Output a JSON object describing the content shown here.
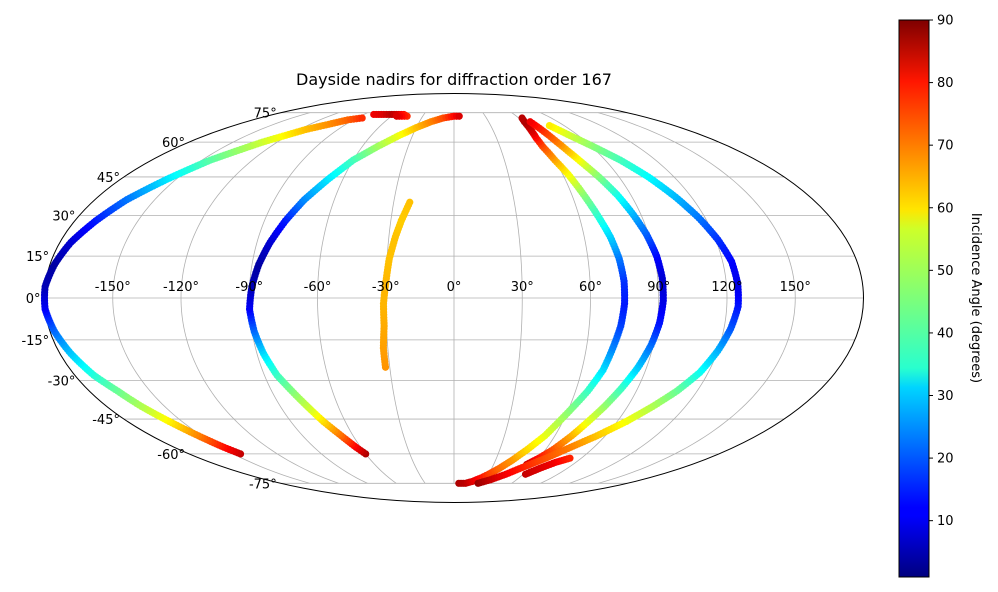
{
  "chart_data": {
    "type": "scatter",
    "projection": "mollweide",
    "title": "Dayside nadirs for diffraction order 167",
    "lon_ticks": [
      "-150°",
      "-120°",
      "-90°",
      "-60°",
      "-30°",
      "0°",
      "30°",
      "60°",
      "90°",
      "120°",
      "150°"
    ],
    "lon_tick_values": [
      -150,
      -120,
      -90,
      -60,
      -30,
      0,
      30,
      60,
      90,
      120,
      150
    ],
    "lat_ticks": [
      "75°",
      "60°",
      "45°",
      "30°",
      "15°",
      "0°",
      "-15°",
      "-30°",
      "-45°",
      "-60°",
      "-75°"
    ],
    "lat_tick_values": [
      75,
      60,
      45,
      30,
      15,
      0,
      -15,
      -30,
      -45,
      -60,
      -75
    ],
    "grid": true,
    "colorbar": {
      "label": "Incidence Angle (degrees)",
      "colormap": "jet",
      "range": [
        1,
        90
      ],
      "ticks": [
        "10",
        "20",
        "30",
        "40",
        "50",
        "60",
        "70",
        "80",
        "90"
      ],
      "tick_values": [
        10,
        20,
        30,
        40,
        50,
        60,
        70,
        80,
        90
      ]
    },
    "series": [
      {
        "points": [
          [
            -60,
            -60,
            86
          ],
          [
            -63,
            -57,
            80
          ],
          [
            -67,
            -52,
            70
          ],
          [
            -72,
            -46,
            60
          ],
          [
            -76,
            -40,
            52
          ],
          [
            -80,
            -34,
            46
          ],
          [
            -84,
            -28,
            40
          ],
          [
            -87,
            -20,
            32
          ],
          [
            -89,
            -12,
            22
          ],
          [
            -90,
            -4,
            12
          ],
          [
            -89,
            4,
            6
          ],
          [
            -87,
            12,
            4
          ],
          [
            -84,
            20,
            8
          ],
          [
            -80,
            28,
            14
          ],
          [
            -75,
            36,
            24
          ],
          [
            -68,
            44,
            32
          ],
          [
            -60,
            52,
            40
          ],
          [
            -50,
            58,
            48
          ],
          [
            -40,
            63,
            55
          ],
          [
            -30,
            67,
            62
          ],
          [
            -20,
            70,
            67
          ],
          [
            -10,
            72,
            72
          ],
          [
            0,
            73,
            78
          ],
          [
            5,
            73,
            82
          ]
        ]
      },
      {
        "points": [
          [
            -145,
            -60,
            84
          ],
          [
            -148,
            -57,
            78
          ],
          [
            -152,
            -52,
            68
          ],
          [
            -157,
            -46,
            58
          ],
          [
            -162,
            -40,
            50
          ],
          [
            -166,
            -34,
            44
          ],
          [
            -171,
            -28,
            38
          ],
          [
            -175,
            -20,
            30
          ],
          [
            -178,
            -12,
            22
          ],
          [
            -180,
            -4,
            12
          ],
          [
            -180,
            4,
            6
          ],
          [
            -178,
            12,
            4
          ],
          [
            -175,
            20,
            8
          ],
          [
            -170,
            28,
            14
          ],
          [
            -164,
            36,
            22
          ],
          [
            -155,
            44,
            32
          ],
          [
            -145,
            52,
            42
          ],
          [
            -130,
            60,
            52
          ],
          [
            -115,
            66,
            62
          ],
          [
            -95,
            71,
            70
          ],
          [
            -85,
            72,
            75
          ]
        ]
      },
      {
        "points": [
          [
            -80,
            74,
            80
          ],
          [
            -70,
            74,
            82
          ],
          [
            -62,
            74,
            85
          ],
          [
            -55,
            74,
            82
          ],
          [
            -50,
            74,
            78
          ],
          [
            -45,
            73,
            75
          ],
          [
            -55,
            73,
            82
          ]
        ]
      },
      {
        "points": [
          [
            -32,
            -25,
            66
          ],
          [
            -32,
            -18,
            65
          ],
          [
            -31,
            -10,
            64
          ],
          [
            -31,
            -2,
            63
          ],
          [
            -30,
            6,
            63
          ],
          [
            -29,
            14,
            62
          ],
          [
            -27,
            22,
            62
          ],
          [
            -25,
            28,
            61
          ],
          [
            -22,
            35,
            62
          ]
        ]
      },
      {
        "points": [
          [
            5,
            -75,
            86
          ],
          [
            12,
            -75,
            85
          ],
          [
            18,
            -74,
            82
          ],
          [
            25,
            -72,
            78
          ],
          [
            30,
            -70,
            74
          ],
          [
            36,
            -67,
            70
          ],
          [
            42,
            -63,
            66
          ],
          [
            48,
            -58,
            60
          ],
          [
            54,
            -52,
            55
          ],
          [
            58,
            -46,
            50
          ],
          [
            62,
            -40,
            45
          ],
          [
            66,
            -34,
            40
          ],
          [
            70,
            -26,
            32
          ],
          [
            72,
            -18,
            24
          ],
          [
            74,
            -10,
            18
          ],
          [
            75,
            -2,
            14
          ],
          [
            75,
            6,
            16
          ],
          [
            74,
            14,
            22
          ],
          [
            72,
            22,
            30
          ],
          [
            69,
            30,
            38
          ],
          [
            66,
            38,
            46
          ],
          [
            63,
            46,
            56
          ],
          [
            60,
            52,
            64
          ],
          [
            58,
            58,
            72
          ],
          [
            58,
            62,
            78
          ],
          [
            59,
            65,
            82
          ],
          [
            61,
            70,
            86
          ],
          [
            63,
            72,
            85
          ]
        ]
      },
      {
        "points": [
          [
            55,
            -65,
            84
          ],
          [
            60,
            -62,
            78
          ],
          [
            65,
            -58,
            72
          ],
          [
            70,
            -52,
            64
          ],
          [
            74,
            -46,
            55
          ],
          [
            78,
            -40,
            48
          ],
          [
            82,
            -33,
            40
          ],
          [
            86,
            -25,
            30
          ],
          [
            89,
            -17,
            22
          ],
          [
            91,
            -9,
            14
          ],
          [
            92,
            -1,
            10
          ],
          [
            92,
            7,
            8
          ],
          [
            91,
            15,
            12
          ],
          [
            89,
            23,
            20
          ],
          [
            86,
            31,
            28
          ],
          [
            83,
            38,
            36
          ],
          [
            79,
            45,
            45
          ],
          [
            75,
            51,
            54
          ],
          [
            72,
            56,
            62
          ],
          [
            70,
            60,
            68
          ],
          [
            68,
            65,
            74
          ],
          [
            66,
            70,
            80
          ]
        ]
      },
      {
        "points": [
          [
            25,
            -75,
            88
          ],
          [
            35,
            -73,
            84
          ],
          [
            45,
            -70,
            80
          ],
          [
            55,
            -66,
            76
          ],
          [
            65,
            -62,
            72
          ],
          [
            75,
            -57,
            68
          ],
          [
            85,
            -52,
            62
          ],
          [
            95,
            -46,
            56
          ],
          [
            103,
            -40,
            50
          ],
          [
            110,
            -34,
            44
          ],
          [
            116,
            -27,
            36
          ],
          [
            120,
            -19,
            28
          ],
          [
            123,
            -11,
            20
          ],
          [
            125,
            -3,
            14
          ],
          [
            125,
            5,
            10
          ],
          [
            124,
            13,
            12
          ],
          [
            121,
            21,
            16
          ],
          [
            117,
            29,
            22
          ],
          [
            112,
            37,
            28
          ],
          [
            106,
            45,
            34
          ],
          [
            99,
            52,
            40
          ],
          [
            91,
            58,
            46
          ],
          [
            84,
            63,
            52
          ],
          [
            78,
            68,
            58
          ]
        ]
      },
      {
        "points": [
          [
            62,
            -70,
            84
          ],
          [
            68,
            -67,
            82
          ],
          [
            75,
            -64,
            80
          ],
          [
            82,
            -62,
            76
          ]
        ]
      }
    ]
  }
}
